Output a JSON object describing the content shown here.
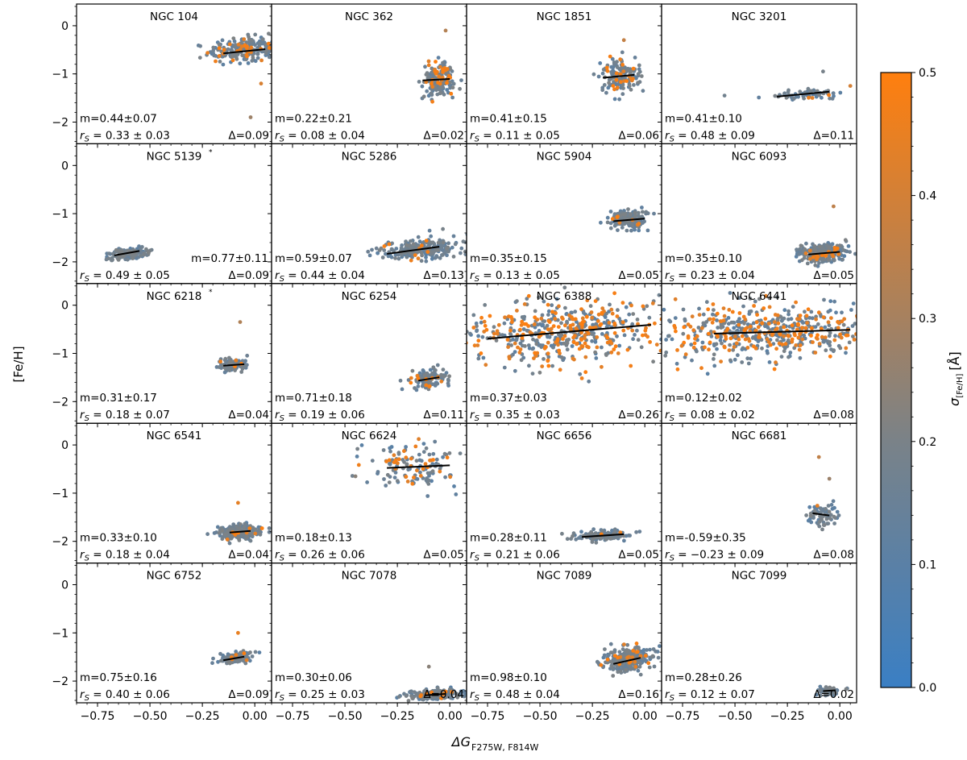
{
  "chart_data": {
    "type": "scatter",
    "layout": "grid 5 rows x 4 columns, shared axes",
    "xlabel_main": "ΔG",
    "xlabel_sub": "F275W, F814W",
    "ylabel": "[Fe/H]",
    "xlim": [
      -0.85,
      0.08
    ],
    "ylim": [
      -2.45,
      0.45
    ],
    "xticks": [
      -0.75,
      -0.5,
      -0.25,
      0.0
    ],
    "xtick_labels": [
      "−0.75",
      "−0.50",
      "−0.25",
      "0.00"
    ],
    "yticks": [
      0,
      -1,
      -2
    ],
    "ytick_labels": [
      "0",
      "−1",
      "−2"
    ],
    "colorbar": {
      "label_main": "σ",
      "label_sub": "[Fe/H]",
      "label_unit": "[Å]",
      "range": [
        0.0,
        0.5
      ],
      "ticks": [
        0.0,
        0.1,
        0.2,
        0.3,
        0.4,
        0.5
      ],
      "tick_labels": [
        "0.0",
        "0.1",
        "0.2",
        "0.3",
        "0.4",
        "0.5"
      ],
      "color_low": "#3a7fc4",
      "color_mid": "#7a8288",
      "color_high": "#ff7f0e"
    },
    "panels": [
      {
        "name": "NGC 104",
        "star": false,
        "m": "m=0.44±0.07",
        "rs": " = 0.33 ± 0.03",
        "delta": "Δ=0.09",
        "fit": [
          -0.15,
          0.05,
          0.44,
          -0.53
        ],
        "cloud": {
          "xc": -0.05,
          "yc": -0.5,
          "sx": 0.085,
          "sy": 0.13,
          "n": 240,
          "orange": 0.12,
          "out": [
            [
              -0.02,
              -1.9
            ],
            [
              0.03,
              -1.2
            ]
          ]
        },
        "m_pos": "left"
      },
      {
        "name": "NGC 362",
        "star": false,
        "m": "m=0.22±0.21",
        "rs": " = 0.08 ± 0.04",
        "delta": "Δ=0.02",
        "fit": [
          -0.13,
          0.0,
          0.22,
          -1.12
        ],
        "cloud": {
          "xc": -0.05,
          "yc": -1.12,
          "sx": 0.035,
          "sy": 0.18,
          "n": 170,
          "orange": 0.18,
          "out": [
            [
              -0.02,
              -0.1
            ]
          ]
        },
        "m_pos": "left"
      },
      {
        "name": "NGC 1851",
        "star": false,
        "m": "m=0.41±0.15",
        "rs": " = 0.11 ± 0.05",
        "delta": "Δ=0.06",
        "fit": [
          -0.2,
          -0.05,
          0.41,
          -1.05
        ],
        "cloud": {
          "xc": -0.12,
          "yc": -1.05,
          "sx": 0.045,
          "sy": 0.16,
          "n": 150,
          "orange": 0.14,
          "out": [
            [
              -0.1,
              -0.3
            ]
          ]
        },
        "m_pos": "left"
      },
      {
        "name": "NGC 3201",
        "star": false,
        "m": "m=0.41±0.10",
        "rs": " = 0.48 ± 0.09",
        "delta": "Δ=0.11",
        "fit": [
          -0.3,
          -0.05,
          0.41,
          -1.42
        ],
        "cloud": {
          "xc": -0.15,
          "yc": -1.42,
          "sx": 0.09,
          "sy": 0.06,
          "n": 60,
          "orange": 0.03,
          "out": [
            [
              -0.55,
              -1.45
            ],
            [
              -0.08,
              -0.95
            ],
            [
              0.05,
              -1.25
            ]
          ]
        },
        "m_pos": "left"
      },
      {
        "name": "NGC 5139",
        "star": true,
        "m": "m=0.77±0.11",
        "rs": " = 0.49 ± 0.05",
        "delta": "Δ=0.09",
        "fit": [
          -0.67,
          -0.55,
          0.77,
          -1.82
        ],
        "cloud": {
          "xc": -0.6,
          "yc": -1.82,
          "sx": 0.05,
          "sy": 0.06,
          "n": 140,
          "orange": 0.0,
          "out": []
        },
        "m_pos": "right"
      },
      {
        "name": "NGC 5286",
        "star": false,
        "m": "m=0.59±0.07",
        "rs": " = 0.44 ± 0.04",
        "delta": "Δ=0.13",
        "fit": [
          -0.3,
          -0.05,
          0.59,
          -1.76
        ],
        "cloud": {
          "xc": -0.14,
          "yc": -1.75,
          "sx": 0.09,
          "sy": 0.1,
          "n": 230,
          "orange": 0.05,
          "out": []
        },
        "m_pos": "left"
      },
      {
        "name": "NGC 5904",
        "star": false,
        "m": "m=0.35±0.15",
        "rs": " = 0.13 ± 0.05",
        "delta": "Δ=0.05",
        "fit": [
          -0.15,
          0.0,
          0.35,
          -1.13
        ],
        "cloud": {
          "xc": -0.08,
          "yc": -1.13,
          "sx": 0.045,
          "sy": 0.1,
          "n": 170,
          "orange": 0.03,
          "out": []
        },
        "m_pos": "left"
      },
      {
        "name": "NGC 6093",
        "star": false,
        "m": "m=0.35±0.10",
        "rs": " = 0.23 ± 0.04",
        "delta": "Δ=0.05",
        "fit": [
          -0.15,
          0.0,
          0.35,
          -1.82
        ],
        "cloud": {
          "xc": -0.08,
          "yc": -1.82,
          "sx": 0.06,
          "sy": 0.09,
          "n": 240,
          "orange": 0.06,
          "out": [
            [
              -0.03,
              -0.85
            ]
          ]
        },
        "m_pos": "left"
      },
      {
        "name": "NGC 6218",
        "star": true,
        "m": "m=0.31±0.17",
        "rs": " = 0.18 ± 0.07",
        "delta": "Δ=0.04",
        "fit": [
          -0.15,
          -0.05,
          0.31,
          -1.24
        ],
        "cloud": {
          "xc": -0.1,
          "yc": -1.24,
          "sx": 0.035,
          "sy": 0.07,
          "n": 100,
          "orange": 0.03,
          "out": [
            [
              -0.07,
              -0.35
            ]
          ]
        },
        "m_pos": "left"
      },
      {
        "name": "NGC 6254",
        "star": false,
        "m": "m=0.71±0.18",
        "rs": " = 0.19 ± 0.06",
        "delta": "Δ=0.11",
        "fit": [
          -0.15,
          -0.05,
          0.71,
          -1.53
        ],
        "cloud": {
          "xc": -0.1,
          "yc": -1.53,
          "sx": 0.045,
          "sy": 0.1,
          "n": 110,
          "orange": 0.09,
          "out": []
        },
        "m_pos": "left"
      },
      {
        "name": "NGC 6388",
        "star": false,
        "m": "m=0.37±0.03",
        "rs": " = 0.35 ± 0.03",
        "delta": "Δ=0.26",
        "fit": [
          -0.75,
          0.03,
          0.37,
          -0.55
        ],
        "cloud": {
          "xc": -0.38,
          "yc": -0.55,
          "sx": 0.24,
          "sy": 0.32,
          "n": 520,
          "orange": 0.38,
          "out": []
        },
        "m_pos": "left"
      },
      {
        "name": "NGC 6441",
        "star": false,
        "m": "m=0.12±0.02",
        "rs": " = 0.08 ± 0.02",
        "delta": "Δ=0.08",
        "fit": [
          -0.6,
          0.05,
          0.12,
          -0.55
        ],
        "cloud": {
          "xc": -0.35,
          "yc": -0.55,
          "sx": 0.25,
          "sy": 0.28,
          "n": 560,
          "orange": 0.35,
          "out": []
        },
        "m_pos": "left"
      },
      {
        "name": "NGC 6541",
        "star": false,
        "m": "m=0.33±0.10",
        "rs": " = 0.18 ± 0.04",
        "delta": "Δ=0.04",
        "fit": [
          -0.12,
          -0.02,
          0.33,
          -1.8
        ],
        "cloud": {
          "xc": -0.07,
          "yc": -1.8,
          "sx": 0.05,
          "sy": 0.08,
          "n": 220,
          "orange": 0.05,
          "out": [
            [
              -0.08,
              -1.2
            ]
          ]
        },
        "m_pos": "left"
      },
      {
        "name": "NGC 6624",
        "star": false,
        "m": "m=0.18±0.13",
        "rs": " = 0.26 ± 0.06",
        "delta": "Δ=0.05",
        "fit": [
          -0.3,
          0.0,
          0.18,
          -0.45
        ],
        "cloud": {
          "xc": -0.17,
          "yc": -0.45,
          "sx": 0.1,
          "sy": 0.22,
          "n": 130,
          "orange": 0.25,
          "out": [
            [
              -0.45,
              -0.65
            ]
          ]
        },
        "m_pos": "left"
      },
      {
        "name": "NGC 6656",
        "star": false,
        "m": "m=0.28±0.11",
        "rs": " = 0.21 ± 0.06",
        "delta": "Δ=0.05",
        "fit": [
          -0.3,
          -0.1,
          0.28,
          -1.88
        ],
        "cloud": {
          "xc": -0.2,
          "yc": -1.88,
          "sx": 0.07,
          "sy": 0.05,
          "n": 140,
          "orange": 0.03,
          "out": []
        },
        "m_pos": "left"
      },
      {
        "name": "NGC 6681",
        "star": false,
        "m": "m=-0.59±0.35",
        "rs": " = −0.23 ± 0.09",
        "delta": "Δ=0.08",
        "fit": [
          -0.13,
          -0.05,
          -0.59,
          -1.44
        ],
        "cloud": {
          "xc": -0.08,
          "yc": -1.44,
          "sx": 0.04,
          "sy": 0.12,
          "n": 70,
          "orange": 0.06,
          "out": [
            [
              -0.1,
              -0.25
            ],
            [
              -0.05,
              -0.7
            ]
          ]
        },
        "m_pos": "left"
      },
      {
        "name": "NGC 6752",
        "star": false,
        "m": "m=0.75±0.16",
        "rs": " = 0.40 ± 0.06",
        "delta": "Δ=0.09",
        "fit": [
          -0.15,
          -0.05,
          0.75,
          -1.53
        ],
        "cloud": {
          "xc": -0.09,
          "yc": -1.52,
          "sx": 0.04,
          "sy": 0.06,
          "n": 130,
          "orange": 0.02,
          "out": [
            [
              -0.08,
              -1.0
            ]
          ]
        },
        "m_pos": "left"
      },
      {
        "name": "NGC 7078",
        "star": false,
        "m": "m=0.30±0.06",
        "rs": " = 0.25 ± 0.03",
        "delta": "Δ=0.04",
        "fit": [
          -0.12,
          -0.02,
          0.3,
          -2.28
        ],
        "cloud": {
          "xc": -0.07,
          "yc": -2.28,
          "sx": 0.06,
          "sy": 0.05,
          "n": 230,
          "orange": 0.02,
          "out": [
            [
              -0.1,
              -1.7
            ]
          ]
        },
        "m_pos": "left"
      },
      {
        "name": "NGC 7089",
        "star": false,
        "m": "m=0.98±0.10",
        "rs": " = 0.48 ± 0.04",
        "delta": "Δ=0.16",
        "fit": [
          -0.15,
          -0.02,
          0.98,
          -1.58
        ],
        "cloud": {
          "xc": -0.08,
          "yc": -1.55,
          "sx": 0.06,
          "sy": 0.12,
          "n": 260,
          "orange": 0.06,
          "out": []
        },
        "m_pos": "left"
      },
      {
        "name": "NGC 7099",
        "star": false,
        "m": "m=0.28±0.26",
        "rs": " = 0.12 ± 0.07",
        "delta": "Δ=0.02",
        "fit": [
          -0.08,
          -0.02,
          0.28,
          -2.2
        ],
        "cloud": {
          "xc": -0.05,
          "yc": -2.2,
          "sx": 0.03,
          "sy": 0.05,
          "n": 60,
          "orange": 0.0,
          "out": []
        },
        "m_pos": "left"
      }
    ]
  }
}
